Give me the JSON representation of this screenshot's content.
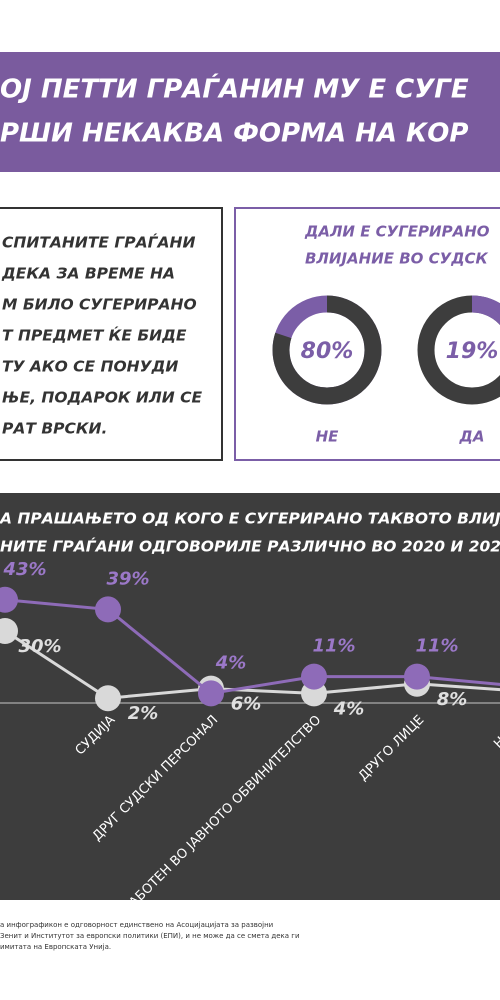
{
  "header": {
    "lines": [
      "ОЈ ПЕТТИ ГРАЃАНИН МУ Е СУГЕ",
      "РШИ НЕКАКВА ФОРМА НА КОР"
    ]
  },
  "intro": {
    "lines": [
      "СПИТАНИТЕ ГРАЃАНИ",
      "ДЕКА ЗА ВРЕМЕ НА",
      "М БИЛО СУГЕРИРАНО",
      "Т ПРЕДМЕТ ЌЕ БИДЕ",
      "ТУ АКО СЕ ПОНУДИ",
      "ЊЕ, ПОДАРОК ИЛИ СЕ",
      "РАТ ВРСКИ."
    ]
  },
  "survey": {
    "title_lines": [
      "ДАЛИ Е СУГЕРИРАНО",
      "ВЛИЈАНИЕ ВО СУДСК"
    ],
    "items": [
      {
        "label": "НЕ",
        "value": 80,
        "value_label": "80%",
        "color": "#3d3d3d",
        "track": "#7b5ea7"
      },
      {
        "label": "ДА",
        "value": 19,
        "value_label": "19%",
        "color": "#7b5ea7",
        "track": "#3d3d3d"
      }
    ]
  },
  "chart_data": {
    "type": "line",
    "title_lines": [
      "А ПРАШАЊЕТО ОД КОГО Е СУГЕРИРАНО ТАКВОТО ВЛИЈА",
      "НИТЕ ГРАЃАНИ ОДГОВОРИЛЕ РАЗЛИЧНО ВО 2020 И 2021"
    ],
    "categories": [
      null,
      "СУДИЈА",
      "ДРУГ СУДСКИ ПЕРСОНАЛ",
      "ВРАБОТЕН ВО ЈАВНОТО ОБВИНИТЕЛСТВО",
      "ДРУГО ЛИЦЕ",
      "НЕ ЗН"
    ],
    "ylim": [
      0,
      45
    ],
    "series": [
      {
        "color": "#8e6bb8",
        "values": [
          43,
          39,
          4,
          11,
          11,
          7
        ],
        "value_labels": [
          "43%",
          "39%",
          "4%",
          "11%",
          "11%",
          null
        ]
      },
      {
        "color": "#d9d9d9",
        "values": [
          30,
          2,
          6,
          4,
          8,
          5
        ],
        "value_labels": [
          "30%",
          "2%",
          "6%",
          "4%",
          "8%",
          null
        ]
      }
    ]
  },
  "footer": {
    "lines": [
      "а инфографикон е одговорност единствено на Асоцијацијата за развојни",
      "Зенит и Институтот за европски политики (ЕПИ), и не може да се смета дека ги",
      "имитата на Европската Унија."
    ]
  }
}
